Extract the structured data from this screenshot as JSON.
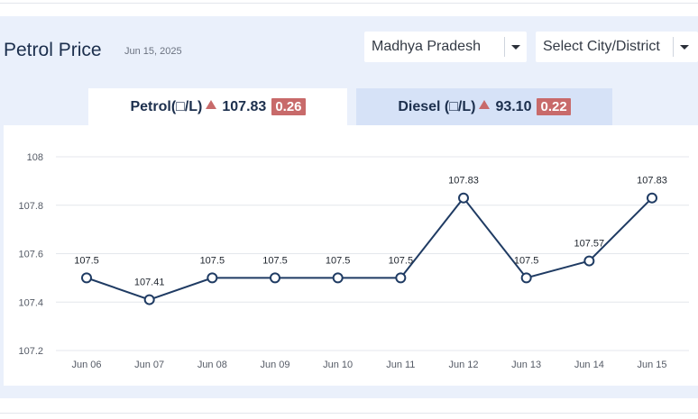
{
  "header": {
    "title": "Petrol Price",
    "date": "Jun 15, 2025"
  },
  "filters": {
    "state": "Madhya Pradesh",
    "city": "Select City/District"
  },
  "tabs": {
    "petrol": {
      "label": "Petrol(□/L)",
      "price": "107.83",
      "change": "0.26"
    },
    "diesel": {
      "label": "Diesel (□/L)",
      "price": "93.10",
      "change": "0.22"
    }
  },
  "colors": {
    "line": "#1f3b63",
    "up_arrow": "#c86a6a",
    "grid": "#e4e7ec"
  },
  "chart_data": {
    "type": "line",
    "categories": [
      "Jun 06",
      "Jun 07",
      "Jun 08",
      "Jun 09",
      "Jun 10",
      "Jun 11",
      "Jun 12",
      "Jun 13",
      "Jun 14",
      "Jun 15"
    ],
    "series": [
      {
        "values": [
          107.5,
          107.41,
          107.5,
          107.5,
          107.5,
          107.5,
          107.83,
          107.5,
          107.57,
          107.83
        ]
      }
    ],
    "data_labels": [
      "107.5",
      "107.41",
      "107.5",
      "107.5",
      "107.5",
      "107.5",
      "107.83",
      "107.5",
      "107.57",
      "107.83"
    ],
    "yticks": [
      107.2,
      107.4,
      107.6,
      107.8,
      108
    ],
    "ytick_labels": [
      "107.2",
      "107.4",
      "107.6",
      "107.8",
      "108"
    ],
    "ylim": [
      107.2,
      108
    ],
    "grid": true
  }
}
